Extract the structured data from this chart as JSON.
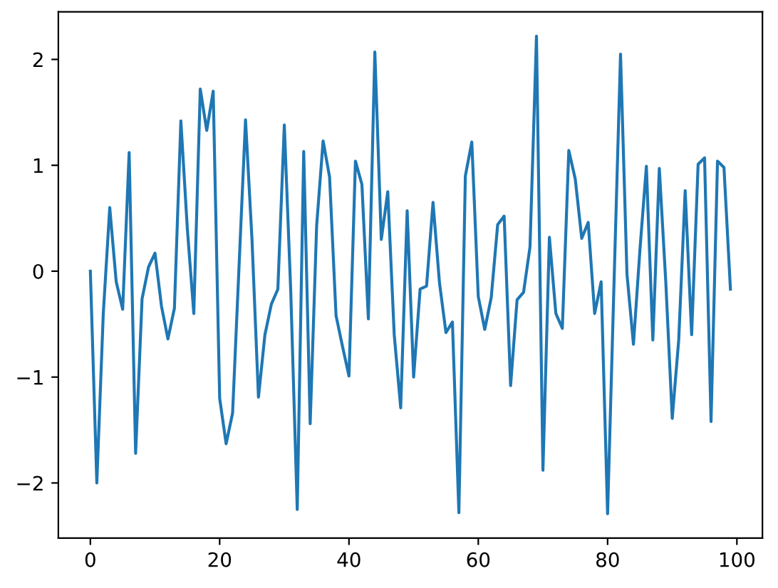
{
  "chart_data": {
    "type": "line",
    "x": [
      0,
      1,
      2,
      3,
      4,
      5,
      6,
      7,
      8,
      9,
      10,
      11,
      12,
      13,
      14,
      15,
      16,
      17,
      18,
      19,
      20,
      21,
      22,
      23,
      24,
      25,
      26,
      27,
      28,
      29,
      30,
      31,
      32,
      33,
      34,
      35,
      36,
      37,
      38,
      39,
      40,
      41,
      42,
      43,
      44,
      45,
      46,
      47,
      48,
      49,
      50,
      51,
      52,
      53,
      54,
      55,
      56,
      57,
      58,
      59,
      60,
      61,
      62,
      63,
      64,
      65,
      66,
      67,
      68,
      69,
      70,
      71,
      72,
      73,
      74,
      75,
      76,
      77,
      78,
      79,
      80,
      81,
      82,
      83,
      84,
      85,
      86,
      87,
      88,
      89,
      90,
      91,
      92,
      93,
      94,
      95,
      96,
      97,
      98,
      99
    ],
    "series": [
      {
        "color": "#1f77b4",
        "values": [
          0.0,
          -2.0,
          -0.4,
          0.6,
          -0.1,
          -0.36,
          1.12,
          -1.72,
          -0.26,
          0.04,
          0.17,
          -0.33,
          -0.64,
          -0.35,
          1.42,
          0.4,
          -0.4,
          1.72,
          1.33,
          1.7,
          -1.2,
          -1.63,
          -1.34,
          0.05,
          1.43,
          0.3,
          -1.19,
          -0.6,
          -0.31,
          -0.17,
          1.38,
          -0.2,
          -2.25,
          1.13,
          -1.44,
          0.43,
          1.23,
          0.89,
          -0.42,
          -0.71,
          -0.99,
          1.04,
          0.82,
          -0.45,
          2.07,
          0.3,
          0.75,
          -0.6,
          -1.29,
          0.57,
          -1.0,
          -0.17,
          -0.14,
          0.65,
          -0.11,
          -0.58,
          -0.48,
          -2.28,
          0.9,
          1.22,
          -0.24,
          -0.55,
          -0.25,
          0.44,
          0.52,
          -1.08,
          -0.27,
          -0.2,
          0.23,
          2.22,
          -1.88,
          0.32,
          -0.4,
          -0.54,
          1.14,
          0.87,
          0.31,
          0.46,
          -0.4,
          -0.1,
          -2.29,
          -0.1,
          2.05,
          -0.03,
          -0.69,
          0.2,
          0.99,
          -0.65,
          0.97,
          -0.1,
          -1.39,
          -0.65,
          0.76,
          -0.6,
          1.01,
          1.07,
          -1.42,
          1.04,
          0.98,
          -0.17
        ]
      }
    ],
    "xlim": [
      -4.95,
      103.95
    ],
    "ylim": [
      -2.52,
      2.45
    ],
    "xticks": [
      0,
      20,
      40,
      60,
      80,
      100
    ],
    "yticks": [
      {
        "value": -2,
        "label": "−2"
      },
      {
        "value": -1,
        "label": "−1"
      },
      0,
      1,
      2
    ],
    "grid": false,
    "marker": "none",
    "line_style": "solid"
  }
}
